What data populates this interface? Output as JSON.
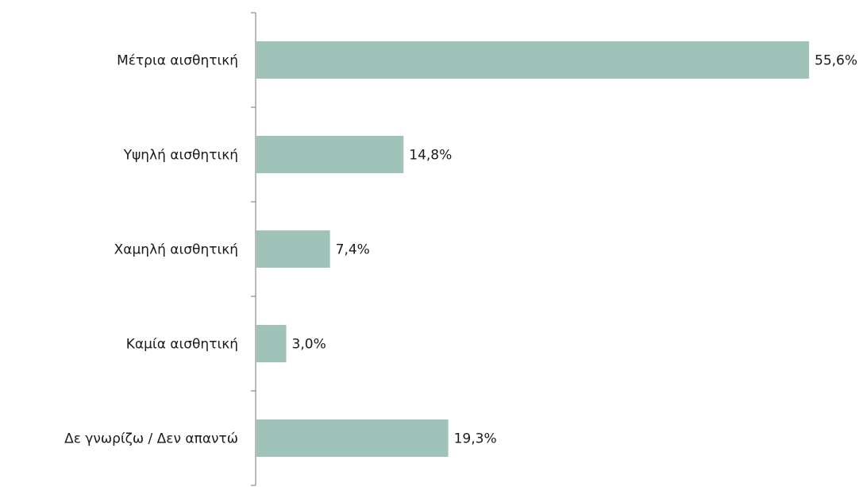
{
  "chart_data": {
    "type": "bar",
    "orientation": "horizontal",
    "categories": [
      "Μέτρια αισθητική",
      "Υψηλή αισθητική",
      "Χαμηλή αισθητική",
      "Καμία αισθητική",
      "Δε γνωρίζω / Δεν απαντώ"
    ],
    "values": [
      55.6,
      14.8,
      7.4,
      3.0,
      19.3
    ],
    "value_labels": [
      "55,6%",
      "14,8%",
      "7,4%",
      "3,0%",
      "19,3%"
    ],
    "unit": "%",
    "xlim": [
      0,
      56
    ],
    "grid": false,
    "legend": "none",
    "bar_color": "#9fc3b8"
  }
}
